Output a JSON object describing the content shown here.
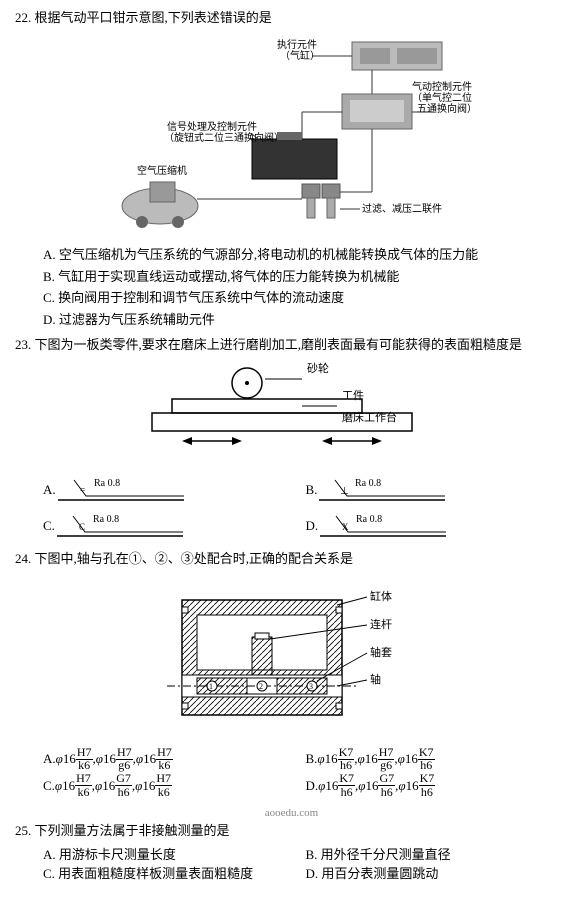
{
  "q22": {
    "num": "22",
    "title": "根据气动平口钳示意图,下列表述错误的是",
    "labels": {
      "actuator": "执行元件\n（气缸）",
      "control": "气动控制元件\n（单气控二位\n五通换向阀）",
      "signal": "信号处理及控制元件\n（旋钮式二位三通换向阀）",
      "compressor": "空气压缩机",
      "filter": "过滤、减压二联件"
    },
    "opts": {
      "A": "A. 空气压缩机为气压系统的气源部分,将电动机的机械能转换成气体的压力能",
      "B": "B. 气缸用于实现直线运动或摆动,将气体的压力能转换为机械能",
      "C": "C. 换向阀用于控制和调节气压系统中气体的流动速度",
      "D": "D. 过滤器为气压系统辅助元件"
    }
  },
  "q23": {
    "num": "23",
    "title": "下图为一板类零件,要求在磨床上进行磨削加工,磨削表面最有可能获得的表面粗糙度是",
    "labels": {
      "wheel": "砂轮",
      "work": "工件",
      "table": "磨床工作台"
    },
    "ra": "Ra 0.8",
    "sym": {
      "A": "=",
      "B": "⊥",
      "C": "C",
      "D": "X"
    }
  },
  "q24": {
    "num": "24",
    "title": "下图中,轴与孔在①、②、③处配合时,正确的配合关系是",
    "labels": {
      "body": "缸体",
      "rod": "连杆",
      "sleeve": "轴套",
      "shaft": "轴"
    },
    "phi": "φ",
    "sz": "16",
    "fits": {
      "A": [
        "H7/k6",
        "H7/g6",
        "H7/k6"
      ],
      "B": [
        "K7/h6",
        "H7/g6",
        "K7/h6"
      ],
      "C": [
        "H7/k6",
        "G7/h6",
        "H7/k6"
      ],
      "D": [
        "K7/h6",
        "G7/h6",
        "K7/h6"
      ]
    }
  },
  "q25": {
    "num": "25",
    "watermark": "aooedu.com",
    "title": "下列测量方法属于非接触测量的是",
    "opts": {
      "A": "A. 用游标卡尺测量长度",
      "B": "B. 用外径千分尺测量直径",
      "C": "C. 用表面粗糙度样板测量表面粗糙度",
      "D": "D. 用百分表测量圆跳动"
    }
  }
}
